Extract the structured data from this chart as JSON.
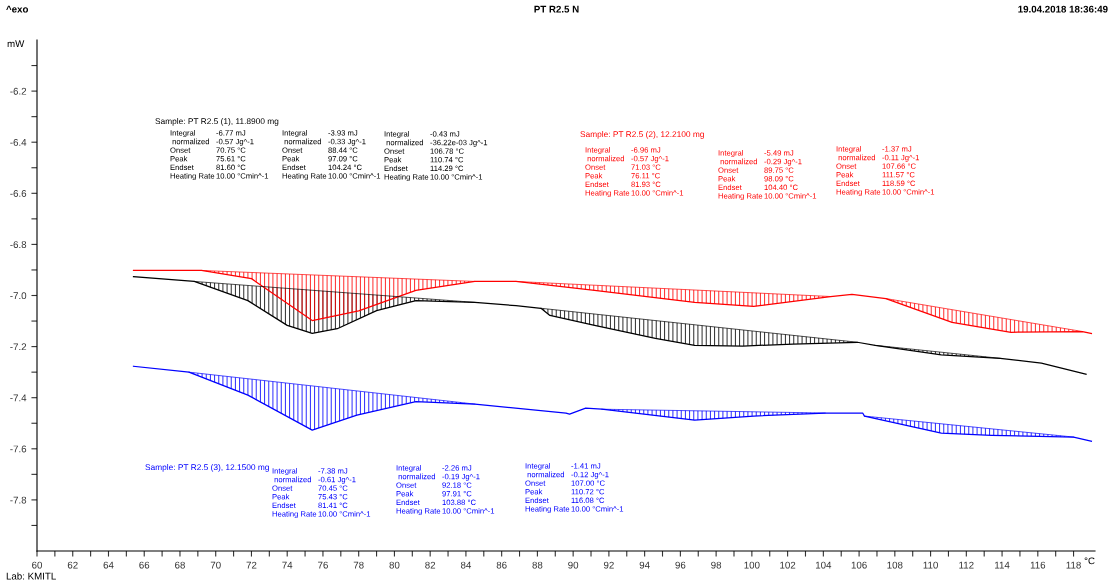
{
  "chart_data": {
    "type": "line",
    "title": "PT R2.5 N",
    "xlabel": "°C",
    "ylabel": "mW",
    "xlim": [
      60,
      119.2
    ],
    "ylim": [
      -8.0,
      -6.0
    ],
    "xticks": [
      60,
      {
        "value": 61,
        "label": null
      },
      62,
      {
        "value": 63,
        "label": null
      },
      64,
      {
        "value": 65,
        "label": null
      },
      66,
      {
        "value": 67,
        "label": null
      },
      68,
      {
        "value": 69,
        "label": null
      },
      70,
      {
        "value": 71,
        "label": null
      },
      72,
      {
        "value": 73,
        "label": null
      },
      74,
      {
        "value": 75,
        "label": null
      },
      76,
      {
        "value": 77,
        "label": null
      },
      78,
      {
        "value": 79,
        "label": null
      },
      80,
      {
        "value": 81,
        "label": null
      },
      82,
      {
        "value": 83,
        "label": null
      },
      84,
      {
        "value": 85,
        "label": null
      },
      86,
      {
        "value": 87,
        "label": null
      },
      88,
      {
        "value": 89,
        "label": null
      },
      90,
      {
        "value": 91,
        "label": null
      },
      92,
      {
        "value": 93,
        "label": null
      },
      94,
      {
        "value": 95,
        "label": null
      },
      96,
      {
        "value": 97,
        "label": null
      },
      98,
      {
        "value": 99,
        "label": null
      },
      100,
      {
        "value": 101,
        "label": null
      },
      102,
      {
        "value": 103,
        "label": null
      },
      104,
      {
        "value": 105,
        "label": null
      },
      106,
      {
        "value": 107,
        "label": null
      },
      108,
      {
        "value": 109,
        "label": null
      },
      110,
      {
        "value": 111,
        "label": null
      },
      112,
      {
        "value": 113,
        "label": null
      },
      114,
      {
        "value": 115,
        "label": null
      },
      116,
      {
        "value": 117,
        "label": null
      },
      118
    ],
    "yticks": [
      {
        "value": -6.1,
        "label": null
      },
      -6.2,
      {
        "value": -6.3,
        "label": null
      },
      -6.4,
      {
        "value": -6.5,
        "label": null
      },
      -6.6,
      {
        "value": -6.7,
        "label": null
      },
      -6.8,
      {
        "value": -6.9,
        "label": null
      },
      {
        "value": -7.0,
        "label": "-7.0"
      },
      {
        "value": -7.1,
        "label": null
      },
      -7.2,
      {
        "value": -7.3,
        "label": null
      },
      -7.4,
      {
        "value": -7.5,
        "label": null
      },
      -7.6,
      {
        "value": -7.7,
        "label": null
      },
      -7.8,
      {
        "value": -7.9,
        "label": null
      }
    ],
    "grid": false,
    "legend": false,
    "marker": "none",
    "line_style": "solid",
    "series": [
      {
        "name": "Sample: PT R2.5 (1), 11.8900 mg",
        "color": "#000000",
        "x": [
          65.4,
          68.8,
          71.8,
          74.0,
          75.4,
          76.8,
          79.0,
          81.2,
          84.5,
          86.8,
          88.2,
          88.7,
          91.2,
          94.6,
          96.8,
          99.5,
          102.3,
          105.9,
          106.9,
          110.6,
          113.9,
          116.2,
          118.7
        ],
        "values": [
          -6.926,
          -6.945,
          -7.02,
          -7.117,
          -7.148,
          -7.13,
          -7.059,
          -7.02,
          -7.027,
          -7.04,
          -7.05,
          -7.078,
          -7.117,
          -7.168,
          -7.195,
          -7.198,
          -7.19,
          -7.183,
          -7.195,
          -7.232,
          -7.246,
          -7.265,
          -7.308
        ]
      },
      {
        "name": "Sample: PT R2.5 (2), 12.2100 mg",
        "color": "#ff0000",
        "x": [
          65.4,
          69.2,
          72.0,
          75.4,
          78.0,
          81.2,
          84.5,
          86.8,
          91.2,
          96.8,
          100.1,
          104.4,
          105.6,
          107.5,
          111.2,
          114.5,
          118.5,
          119.0
        ],
        "values": [
          -6.902,
          -6.902,
          -6.934,
          -7.098,
          -7.06,
          -6.98,
          -6.945,
          -6.945,
          -6.98,
          -7.027,
          -7.043,
          -7.004,
          -6.996,
          -7.012,
          -7.105,
          -7.144,
          -7.141,
          -7.149
        ]
      },
      {
        "name": "Sample: PT R2.5 (3), 12.1500 mg",
        "color": "#0000ff",
        "x": [
          65.4,
          68.5,
          71.8,
          75.4,
          77.9,
          81.2,
          84.5,
          89.6,
          89.8,
          90.7,
          91.6,
          96.8,
          100.1,
          104.1,
          106.2,
          106.3,
          110.6,
          113.4,
          118.0,
          119.0
        ],
        "values": [
          -7.277,
          -7.3,
          -7.39,
          -7.527,
          -7.468,
          -7.415,
          -7.425,
          -7.46,
          -7.464,
          -7.441,
          -7.445,
          -7.488,
          -7.472,
          -7.46,
          -7.46,
          -7.472,
          -7.539,
          -7.547,
          -7.554,
          -7.57
        ]
      },
      {
        "color": "#000000",
        "x": [
          68.8,
          84.5
        ],
        "values": [
          -6.945,
          -7.027
        ]
      },
      {
        "color": "#000000",
        "x": [
          88.2,
          105.9
        ],
        "values": [
          -7.05,
          -7.183
        ]
      },
      {
        "color": "#000000",
        "x": [
          106.9,
          113.9
        ],
        "values": [
          -7.195,
          -7.246
        ]
      },
      {
        "color": "#ff0000",
        "x": [
          69.2,
          84.5
        ],
        "values": [
          -6.902,
          -6.945
        ]
      },
      {
        "color": "#ff0000",
        "x": [
          86.8,
          104.4
        ],
        "values": [
          -6.945,
          -7.004
        ]
      },
      {
        "color": "#ff0000",
        "x": [
          107.5,
          118.5
        ],
        "values": [
          -7.012,
          -7.141
        ]
      },
      {
        "color": "#0000ff",
        "x": [
          68.5,
          84.5
        ],
        "values": [
          -7.3,
          -7.425
        ]
      },
      {
        "color": "#0000ff",
        "x": [
          91.6,
          104.1
        ],
        "values": [
          -7.445,
          -7.46
        ]
      },
      {
        "color": "#0000ff",
        "x": [
          106.3,
          118.0
        ],
        "values": [
          -7.472,
          -7.554
        ]
      }
    ],
    "annotations": [
      "^exo",
      "19.04.2018 18:36:49",
      "Lab: KMITL",
      "Integral\t-6.77 mJ\n normalized\t-0.57 Jg^-1\nOnset\t70.75 °C\nPeak\t75.61 °C\nEndset\t81.60 °C\nHeating Rate\t10.00 °Cmin^-1",
      "Integral\t-3.93 mJ\n normalized\t-0.33 Jg^-1\nOnset\t88.44 °C\nPeak\t97.09 °C\nEndset\t104.24 °C\nHeating Rate\t10.00 °Cmin^-1",
      "Integral\t-0.43 mJ\n normalized\t-36.22e-03 Jg^-1\nOnset\t106.78 °C\nPeak\t110.74 °C\nEndset\t114.29 °C\nHeating Rate\t10.00 °Cmin^-1",
      "Integral\t-6.96 mJ\n normalized\t-0.57 Jg^-1\nOnset\t71.03 °C\nPeak\t76.11 °C\nEndset\t81.93 °C\nHeating Rate\t10.00 °Cmin^-1",
      "Integral\t-5.49 mJ\n normalized\t-0.29 Jg^-1\nOnset\t89.75 °C\nPeak\t98.09 °C\nEndset\t104.40 °C\nHeating Rate\t10.00 °Cmin^-1",
      "Integral\t-1.37 mJ\n normalized\t-0.11 Jg^-1\nOnset\t107.66 °C\nPeak\t111.57 °C\nEndset\t118.59 °C\nHeating Rate\t10.00 °Cmin^-1",
      "Integral\t-7.38 mJ\n normalized\t-0.61 Jg^-1\nOnset\t70.45 °C\nPeak\t75.43 °C\nEndset\t81.41 °C\nHeating Rate\t10.00 °Cmin^-1",
      "Integral\t-2.26 mJ\n normalized\t-0.19 Jg^-1\nOnset\t92.18 °C\nPeak\t97.91 °C\nEndset\t103.88 °C\nHeating Rate\t10.00 °Cmin^-1",
      "Integral\t-1.41 mJ\n normalized\t-0.12 Jg^-1\nOnset\t107.00 °C\nPeak\t110.72 °C\nEndset\t116.08 °C\nHeating Rate\t10.00 °Cmin^-1"
    ]
  }
}
